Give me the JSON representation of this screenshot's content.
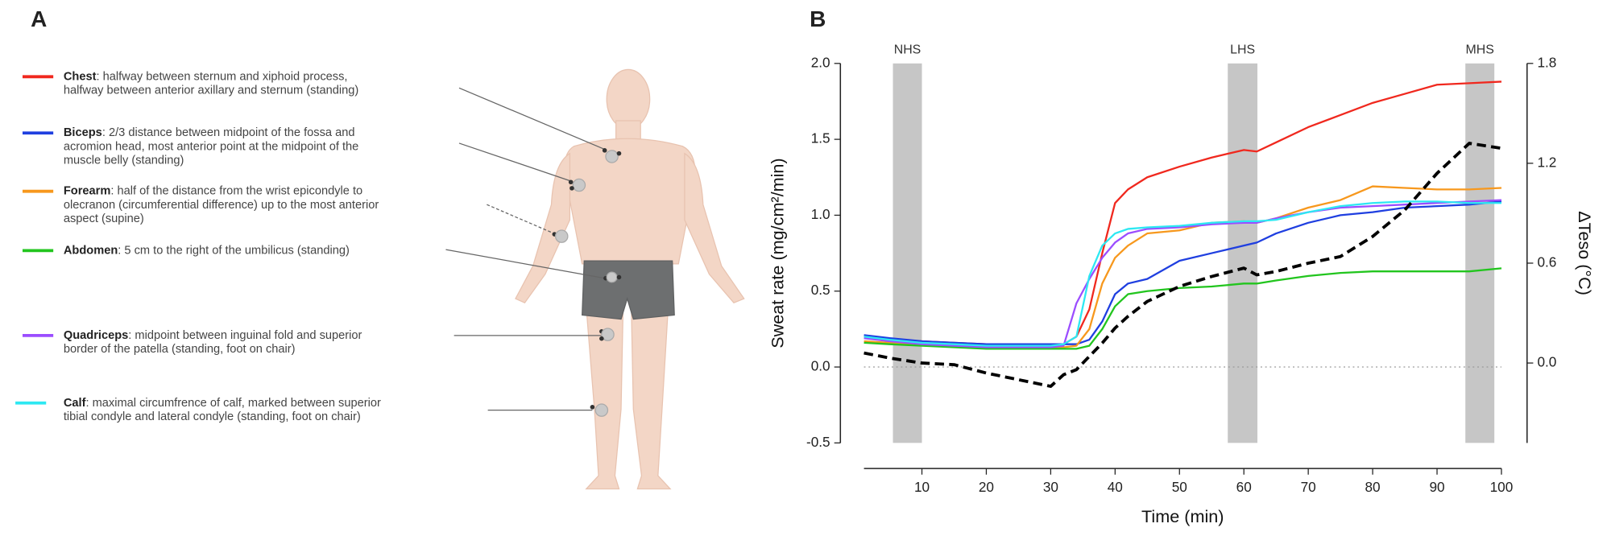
{
  "panel_a": {
    "label": "A",
    "descriptions": [
      [
        ": halfway between sternum and xiphoid process,",
        "halfway between anterior axillary and sternum (standing)"
      ],
      [
        ": 2/3 distance between midpoint of the fossa and",
        "acromion head, most anterior point at the midpoint of the",
        "muscle belly (standing)"
      ],
      [
        ": half of the distance from the wrist epicondyle to",
        "olecranon (circumferential difference) up to the most anterior",
        "aspect (supine)"
      ],
      [
        ": 5 cm to the right of the umbilicus (standing)"
      ],
      [
        ": midpoint between inguinal fold and superior",
        "border of the patella (standing, foot on chair)"
      ],
      [
        ": maximal circumfrence of calf, marked between superior",
        "tibial condyle and lateral condyle (standing, foot on chair)"
      ]
    ]
  },
  "panel_b": {
    "label": "B"
  },
  "chart_data": {
    "type": "line",
    "x_label": "Time (min)",
    "y_label": "Sweat rate (mg/cm²/min)",
    "y2_label": "ΔTeso (°C)",
    "xlim": [
      1,
      100
    ],
    "xticks": [
      10,
      20,
      30,
      40,
      50,
      60,
      70,
      80,
      90,
      100
    ],
    "ylim": [
      -0.5,
      2.0
    ],
    "yticks": [
      {
        "value": 2,
        "label": "2.0"
      },
      1.5,
      {
        "value": 1,
        "label": "1.0"
      },
      0.5,
      {
        "value": 0,
        "label": "0.0"
      },
      -0.5
    ],
    "y2lim": [
      -0.48,
      1.8
    ],
    "y2ticks": [
      1.8,
      1.2,
      0.6,
      {
        "value": 0,
        "label": "0.0"
      }
    ],
    "hline": 0,
    "bands": [
      {
        "label": "NHS",
        "start": 5.5,
        "end": 10
      },
      {
        "label": "LHS",
        "start": 57.5,
        "end": 62.1
      },
      {
        "label": "MHS",
        "start": 94.4,
        "end": 98.9
      }
    ],
    "x": [
      1,
      5,
      10,
      15,
      20,
      25,
      30,
      32,
      34,
      36,
      38,
      40,
      42,
      45,
      50,
      55,
      60,
      62,
      65,
      70,
      75,
      80,
      85,
      90,
      95,
      100
    ],
    "series": [
      {
        "name": "Chest",
        "color": "#f0281e",
        "values": [
          0.2,
          0.18,
          0.17,
          0.16,
          0.15,
          0.15,
          0.14,
          0.15,
          0.2,
          0.38,
          0.75,
          1.08,
          1.17,
          1.25,
          1.32,
          1.38,
          1.43,
          1.42,
          1.48,
          1.58,
          1.66,
          1.74,
          1.8,
          1.86,
          1.87,
          1.88
        ]
      },
      {
        "name": "Biceps",
        "color": "#1f3fe0",
        "values": [
          0.21,
          0.19,
          0.17,
          0.16,
          0.15,
          0.15,
          0.15,
          0.15,
          0.15,
          0.18,
          0.3,
          0.48,
          0.55,
          0.58,
          0.7,
          0.75,
          0.8,
          0.82,
          0.88,
          0.95,
          1.0,
          1.02,
          1.05,
          1.06,
          1.07,
          1.09
        ]
      },
      {
        "name": "Forearm",
        "color": "#f7981d",
        "values": [
          0.17,
          0.16,
          0.15,
          0.14,
          0.13,
          0.13,
          0.13,
          0.13,
          0.14,
          0.25,
          0.55,
          0.72,
          0.8,
          0.88,
          0.9,
          0.95,
          0.96,
          0.95,
          0.98,
          1.05,
          1.1,
          1.19,
          1.18,
          1.17,
          1.17,
          1.18
        ]
      },
      {
        "name": "Abdomen",
        "color": "#22c51e",
        "values": [
          0.16,
          0.15,
          0.14,
          0.13,
          0.12,
          0.12,
          0.12,
          0.12,
          0.12,
          0.14,
          0.25,
          0.4,
          0.48,
          0.5,
          0.52,
          0.53,
          0.55,
          0.55,
          0.57,
          0.6,
          0.62,
          0.63,
          0.63,
          0.63,
          0.63,
          0.65
        ]
      },
      {
        "name": "Quadriceps",
        "color": "#9b4dff",
        "values": [
          0.19,
          0.17,
          0.15,
          0.14,
          0.13,
          0.13,
          0.13,
          0.14,
          0.42,
          0.58,
          0.72,
          0.82,
          0.88,
          0.91,
          0.92,
          0.94,
          0.95,
          0.95,
          0.98,
          1.02,
          1.05,
          1.06,
          1.07,
          1.08,
          1.09,
          1.1
        ]
      },
      {
        "name": "Calf",
        "color": "#2de8f2",
        "values": [
          0.2,
          0.18,
          0.16,
          0.15,
          0.14,
          0.14,
          0.14,
          0.15,
          0.2,
          0.6,
          0.8,
          0.88,
          0.91,
          0.92,
          0.93,
          0.95,
          0.96,
          0.96,
          0.97,
          1.02,
          1.06,
          1.08,
          1.09,
          1.09,
          1.08,
          1.08
        ]
      },
      {
        "color": "#000000",
        "axis": "y2",
        "dashed": true,
        "values": [
          0.06,
          0.03,
          0.0,
          -0.01,
          -0.06,
          -0.1,
          -0.14,
          -0.07,
          -0.04,
          0.04,
          0.12,
          0.21,
          0.28,
          0.37,
          0.46,
          0.52,
          0.57,
          0.53,
          0.55,
          0.6,
          0.64,
          0.76,
          0.92,
          1.14,
          1.32,
          1.29
        ]
      }
    ]
  }
}
